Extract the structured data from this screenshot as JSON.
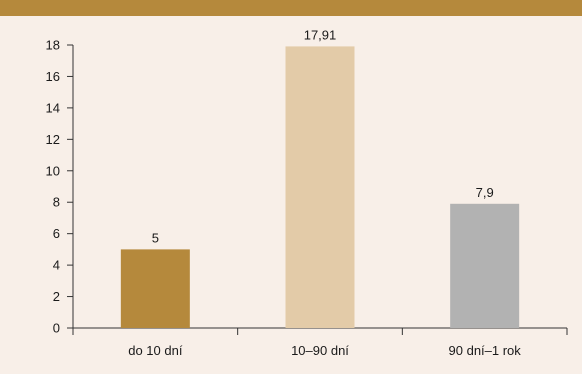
{
  "chart_data": {
    "type": "bar",
    "categories": [
      "do 10 dní",
      "10–90 dní",
      "90 dní–1 rok"
    ],
    "values": [
      5,
      17.91,
      7.9
    ],
    "data_labels": [
      "5",
      "17,91",
      "7,9"
    ],
    "bar_colors": [
      "#b5893c",
      "#e3cba8",
      "#b2b2b2"
    ],
    "ylim": [
      0,
      18
    ],
    "yticks": [
      "0",
      "2",
      "4",
      "6",
      "8",
      "10",
      "12",
      "14",
      "16",
      "18"
    ],
    "grid": false,
    "legend": "none"
  },
  "colors": {
    "background": "#f8efe8",
    "header_bar": "#b5893c",
    "axis": "#333333"
  }
}
